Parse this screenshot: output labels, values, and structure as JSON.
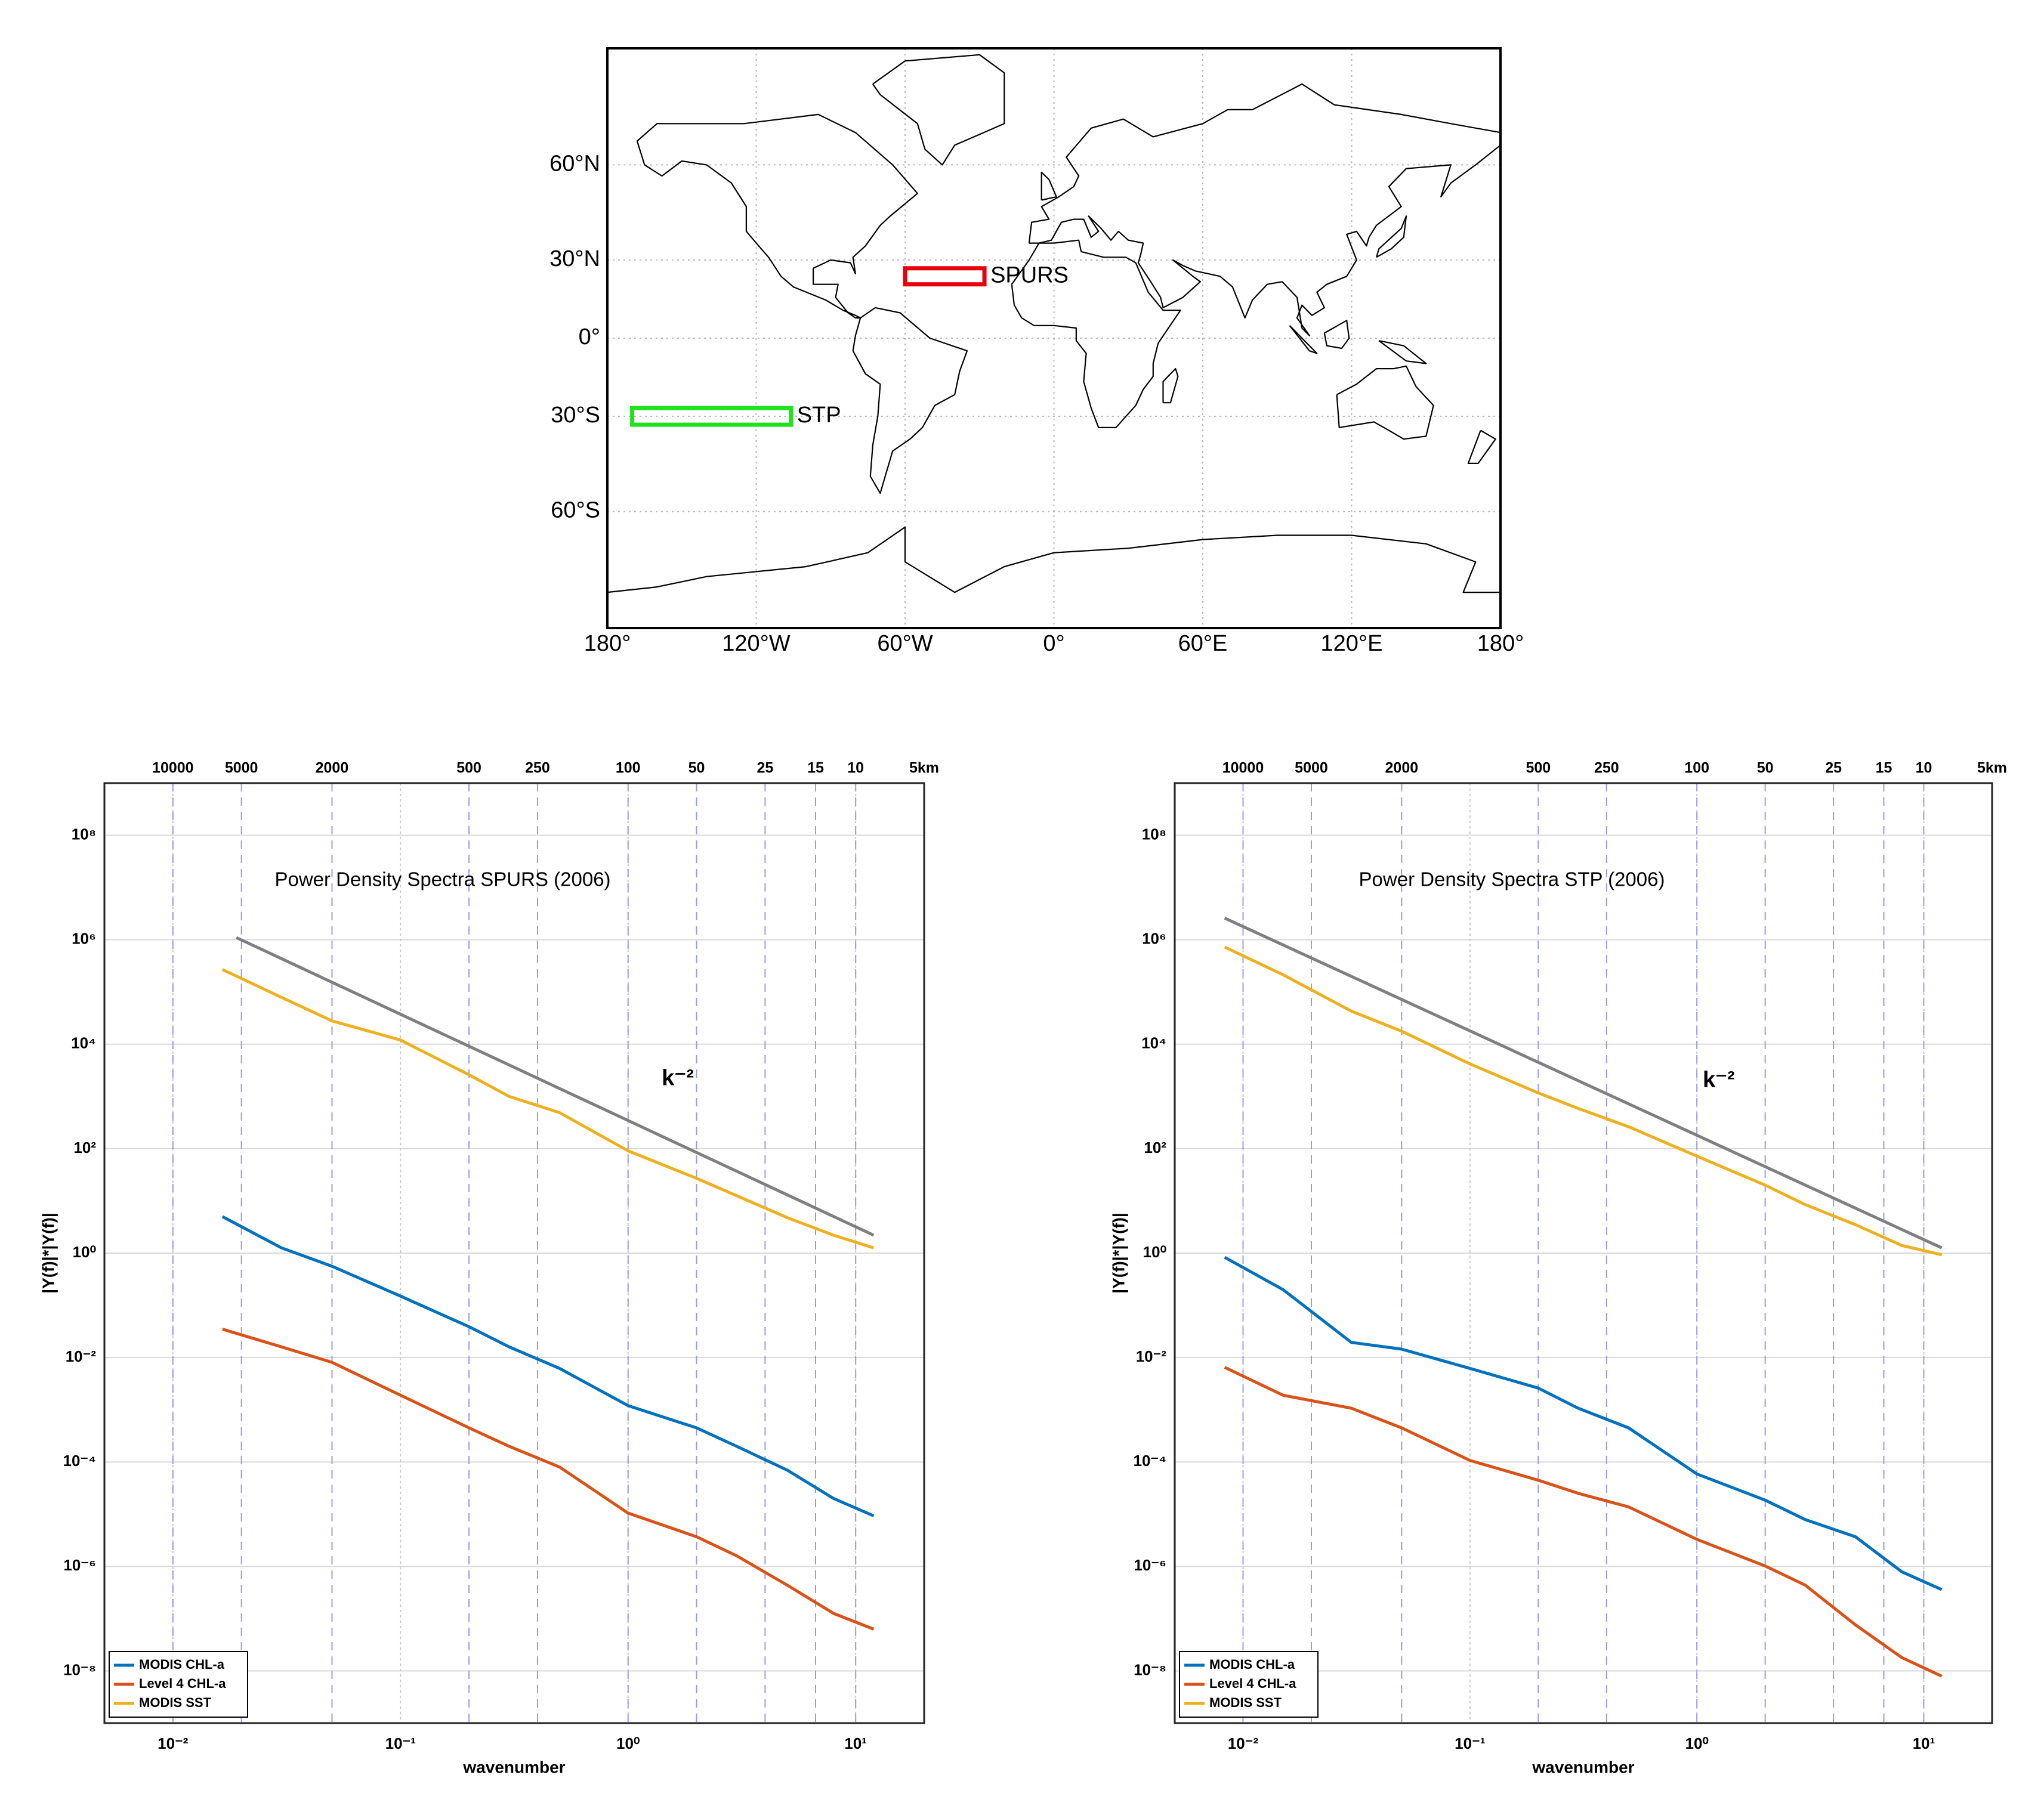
{
  "chart_data": [
    {
      "type": "map",
      "projection": "miller",
      "grid": true,
      "xlim": [
        -180,
        180
      ],
      "ylim": [
        -84,
        84
      ],
      "xticks": [
        {
          "value": -180,
          "label": "180°"
        },
        {
          "value": -120,
          "label": "120°W"
        },
        {
          "value": -60,
          "label": "60°W"
        },
        {
          "value": 0,
          "label": "0°"
        },
        {
          "value": 60,
          "label": "60°E"
        },
        {
          "value": 120,
          "label": "120°E"
        },
        {
          "value": 180,
          "label": "180°"
        }
      ],
      "yticks": [
        {
          "value": -60,
          "label": "60°S"
        },
        {
          "value": -30,
          "label": "30°S"
        },
        {
          "value": 0,
          "label": "0°"
        },
        {
          "value": 30,
          "label": "30°N"
        },
        {
          "value": 60,
          "label": "60°N"
        }
      ],
      "regions": [
        {
          "name": "SPURS",
          "lon": [
            -60,
            -28
          ],
          "lat": [
            21,
            27
          ],
          "color": "#e8000b"
        },
        {
          "name": "STP",
          "lon": [
            -170,
            -106
          ],
          "lat": [
            -33,
            -27
          ],
          "color": "#1ee31e"
        }
      ]
    },
    {
      "type": "line",
      "title": "Power Density Spectra SPURS (2006)",
      "x_label": "wavenumber",
      "y_label": "|Y(f)|*|Y(f)|",
      "log_x": true,
      "log_y": true,
      "grid": true,
      "legend": "lower left",
      "xlim": [
        0.005,
        20
      ],
      "ylim": [
        1e-09,
        1000000000.0
      ],
      "xticks": [
        {
          "value": 0.01,
          "label": "10⁻²"
        },
        {
          "value": 0.1,
          "label": "10⁻¹"
        },
        {
          "value": 1,
          "label": "10⁰"
        },
        {
          "value": 10,
          "label": "10¹"
        }
      ],
      "yticks": [
        {
          "value": 1e-08,
          "label": "10⁻⁸"
        },
        {
          "value": 1e-06,
          "label": "10⁻⁶"
        },
        {
          "value": 0.0001,
          "label": "10⁻⁴"
        },
        {
          "value": 0.01,
          "label": "10⁻²"
        },
        {
          "value": 1,
          "label": "10⁰"
        },
        {
          "value": 100,
          "label": "10²"
        },
        {
          "value": 10000,
          "label": "10⁴"
        },
        {
          "value": 1000000,
          "label": "10⁶"
        },
        {
          "value": 100000000,
          "label": "10⁸"
        }
      ],
      "x2lim": [
        20000,
        5
      ],
      "x2ticks": [
        10000,
        5000,
        2000,
        500,
        250,
        100,
        50,
        25,
        15,
        10,
        {
          "value": 5,
          "label": "5km"
        }
      ],
      "x": [
        0.0165,
        0.03,
        0.05,
        0.1,
        0.2,
        0.3,
        0.5,
        1,
        2,
        3,
        5,
        8,
        12
      ],
      "series": [
        {
          "name": "MODIS CHL-a",
          "color": "#0072bd",
          "values": [
            5,
            1.26,
            0.56,
            0.15,
            0.039,
            0.016,
            0.0062,
            0.0012,
            0.00045,
            0.0002,
            7e-05,
            2e-05,
            9.3e-06
          ]
        },
        {
          "name": "Level 4 CHL-a",
          "color": "#d95319",
          "values": [
            0.035,
            0.016,
            0.0081,
            0.0019,
            0.00045,
            0.0002,
            8e-05,
            1.05e-05,
            3.7e-06,
            1.6e-06,
            4.4e-07,
            1.26e-07,
            6.3e-08
          ]
        },
        {
          "name": "MODIS SST",
          "color": "#edb120",
          "values": [
            270000,
            79000,
            28000,
            12000,
            2600,
            1000,
            490,
            91,
            27,
            12.6,
            4.8,
            2.2,
            1.26
          ]
        }
      ],
      "reference": {
        "label": "k⁻²",
        "color": "#7f7f7f",
        "x": [
          0.019,
          12
        ],
        "values": [
          1100000,
          2.2
        ]
      }
    },
    {
      "type": "line",
      "title": "Power Density Spectra STP (2006)",
      "x_label": "wavenumber",
      "y_label": "|Y(f)|*|Y(f)|",
      "log_x": true,
      "log_y": true,
      "grid": true,
      "legend": "lower left",
      "xlim": [
        0.005,
        20
      ],
      "ylim": [
        1e-09,
        1000000000.0
      ],
      "xticks": [
        {
          "value": 0.01,
          "label": "10⁻²"
        },
        {
          "value": 0.1,
          "label": "10⁻¹"
        },
        {
          "value": 1,
          "label": "10⁰"
        },
        {
          "value": 10,
          "label": "10¹"
        }
      ],
      "yticks": [
        {
          "value": 1e-08,
          "label": "10⁻⁸"
        },
        {
          "value": 1e-06,
          "label": "10⁻⁶"
        },
        {
          "value": 0.0001,
          "label": "10⁻⁴"
        },
        {
          "value": 0.01,
          "label": "10⁻²"
        },
        {
          "value": 1,
          "label": "10⁰"
        },
        {
          "value": 100,
          "label": "10²"
        },
        {
          "value": 10000,
          "label": "10⁴"
        },
        {
          "value": 1000000,
          "label": "10⁶"
        },
        {
          "value": 100000000,
          "label": "10⁸"
        }
      ],
      "x2lim": [
        20000,
        5
      ],
      "x2ticks": [
        10000,
        5000,
        2000,
        500,
        250,
        100,
        50,
        25,
        15,
        10,
        {
          "value": 5,
          "label": "5km"
        }
      ],
      "x": [
        0.0083,
        0.015,
        0.03,
        0.05,
        0.1,
        0.2,
        0.3,
        0.5,
        1,
        2,
        3,
        5,
        8,
        12
      ],
      "series": [
        {
          "name": "MODIS CHL-a",
          "color": "#0072bd",
          "values": [
            0.83,
            0.2,
            0.0195,
            0.0145,
            0.0062,
            0.0026,
            0.00107,
            0.00045,
            5.9e-05,
            1.86e-05,
            7.9e-06,
            3.7e-06,
            7.9e-07,
            3.6e-07
          ]
        },
        {
          "name": "Level 4 CHL-a",
          "color": "#d95319",
          "values": [
            0.0065,
            0.0019,
            0.00107,
            0.00045,
            0.000107,
            4.47e-05,
            2.51e-05,
            1.38e-05,
            3.3e-06,
            1.02e-06,
            4.4e-07,
            7.6e-08,
            1.8e-08,
            7.9e-09
          ]
        },
        {
          "name": "MODIS SST",
          "color": "#edb120",
          "values": [
            724000,
            214000,
            43000,
            17800,
            4200,
            1170,
            590,
            263,
            72,
            20,
            8.5,
            3.5,
            1.4,
            0.93
          ]
        }
      ],
      "reference": {
        "label": "k⁻²",
        "color": "#7f7f7f",
        "x": [
          0.0083,
          12
        ],
        "values": [
          2600000,
          1.26
        ]
      }
    }
  ]
}
